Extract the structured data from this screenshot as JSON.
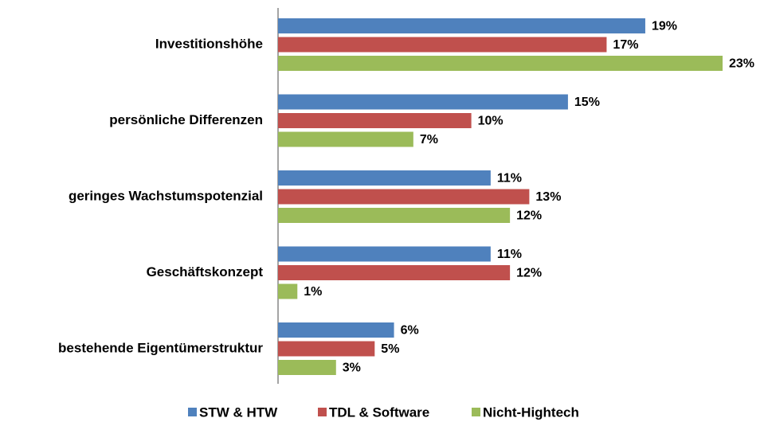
{
  "chart_data": {
    "type": "bar",
    "orientation": "horizontal",
    "categories": [
      "Investitionshöhe",
      "persönliche Differenzen",
      "geringes Wachstumspotenzial",
      "Geschäftskonzept",
      "bestehende Eigentümerstruktur"
    ],
    "series": [
      {
        "name": "STW & HTW",
        "color": "#4f81bd",
        "values": [
          19,
          15,
          11,
          11,
          6
        ],
        "value_labels": [
          "19%",
          "15%",
          "11%",
          "11%",
          "6%"
        ]
      },
      {
        "name": "TDL & Software",
        "color": "#c0504d",
        "values": [
          17,
          10,
          13,
          12,
          5
        ],
        "value_labels": [
          "17%",
          "10%",
          "13%",
          "12%",
          "5%"
        ]
      },
      {
        "name": "Nicht-Hightech",
        "color": "#9bbb59",
        "values": [
          23,
          7,
          12,
          1,
          3
        ],
        "value_labels": [
          "23%",
          "7%",
          "12%",
          "1%",
          "3%"
        ]
      }
    ],
    "xlim": [
      0,
      23
    ]
  }
}
